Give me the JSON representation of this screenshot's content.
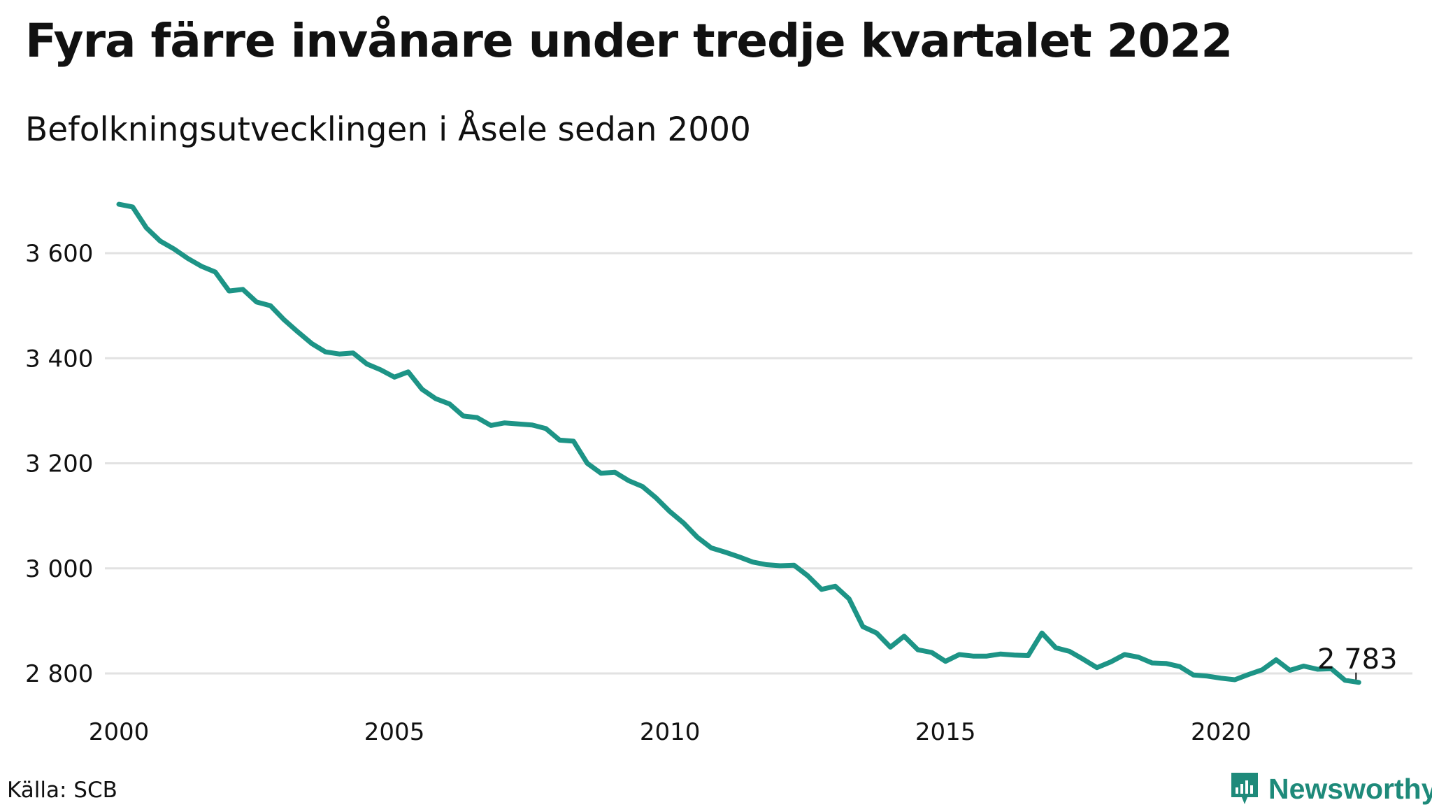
{
  "title": "Fyra färre invånare under tredje kvartalet 2022",
  "subtitle": "Befolkningsutvecklingen i Åsele sedan 2000",
  "source": "Källa: SCB",
  "brand": "Newsworthy",
  "colors": {
    "line": "#1d9486",
    "grid": "#e2e2e2",
    "text": "#111111",
    "brand": "#1e8a7a"
  },
  "icons": {
    "brand_logo": "newsworthy-logo-icon"
  },
  "chart_data": {
    "type": "line",
    "title": "Fyra färre invånare under tredje kvartalet 2022",
    "subtitle": "Befolkningsutvecklingen i Åsele sedan 2000",
    "xlabel": "",
    "ylabel": "",
    "x_ticks": [
      2000,
      2005,
      2010,
      2015,
      2020
    ],
    "x_tick_labels": [
      "2000",
      "2005",
      "2010",
      "2015",
      "2020"
    ],
    "y_ticks": [
      2800,
      3000,
      3200,
      3400,
      3600
    ],
    "y_tick_labels": [
      "2 800",
      "3 000",
      "3 200",
      "3 400",
      "3 600"
    ],
    "xlim": [
      2000,
      2023.5
    ],
    "ylim": [
      2750,
      3720
    ],
    "grid": "horizontal",
    "x": [
      "2000-Q1",
      "2000-Q2",
      "2000-Q3",
      "2000-Q4",
      "2001-Q1",
      "2001-Q2",
      "2001-Q3",
      "2001-Q4",
      "2002-Q1",
      "2002-Q2",
      "2002-Q3",
      "2002-Q4",
      "2003-Q1",
      "2003-Q2",
      "2003-Q3",
      "2003-Q4",
      "2004-Q1",
      "2004-Q2",
      "2004-Q3",
      "2004-Q4",
      "2005-Q1",
      "2005-Q2",
      "2005-Q3",
      "2005-Q4",
      "2006-Q1",
      "2006-Q2",
      "2006-Q3",
      "2006-Q4",
      "2007-Q1",
      "2007-Q2",
      "2007-Q3",
      "2007-Q4",
      "2008-Q1",
      "2008-Q2",
      "2008-Q3",
      "2008-Q4",
      "2009-Q1",
      "2009-Q2",
      "2009-Q3",
      "2009-Q4",
      "2010-Q1",
      "2010-Q2",
      "2010-Q3",
      "2010-Q4",
      "2011-Q1",
      "2011-Q2",
      "2011-Q3",
      "2011-Q4",
      "2012-Q1",
      "2012-Q2",
      "2012-Q3",
      "2012-Q4",
      "2013-Q1",
      "2013-Q2",
      "2013-Q3",
      "2013-Q4",
      "2014-Q1",
      "2014-Q2",
      "2014-Q3",
      "2014-Q4",
      "2015-Q1",
      "2015-Q2",
      "2015-Q3",
      "2015-Q4",
      "2016-Q1",
      "2016-Q2",
      "2016-Q3",
      "2016-Q4",
      "2017-Q1",
      "2017-Q2",
      "2017-Q3",
      "2017-Q4",
      "2018-Q1",
      "2018-Q2",
      "2018-Q3",
      "2018-Q4",
      "2019-Q1",
      "2019-Q2",
      "2019-Q3",
      "2019-Q4",
      "2020-Q1",
      "2020-Q2",
      "2020-Q3",
      "2020-Q4",
      "2021-Q1",
      "2021-Q2",
      "2021-Q3",
      "2021-Q4",
      "2022-Q1",
      "2022-Q2",
      "2022-Q3"
    ],
    "series": [
      {
        "values": [
          3693,
          3688,
          3648,
          3623,
          3608,
          3590,
          3575,
          3564,
          3528,
          3531,
          3507,
          3500,
          3473,
          3450,
          3428,
          3412,
          3408,
          3410,
          3389,
          3378,
          3364,
          3374,
          3341,
          3323,
          3313,
          3290,
          3287,
          3272,
          3277,
          3275,
          3273,
          3266,
          3244,
          3242,
          3200,
          3181,
          3183,
          3167,
          3156,
          3134,
          3108,
          3086,
          3059,
          3039,
          3031,
          3022,
          3012,
          3007,
          3005,
          3006,
          2986,
          2960,
          2966,
          2942,
          2889,
          2877,
          2850,
          2871,
          2845,
          2840,
          2823,
          2836,
          2833,
          2833,
          2837,
          2835,
          2834,
          2877,
          2849,
          2842,
          2827,
          2811,
          2822,
          2836,
          2831,
          2820,
          2819,
          2813,
          2797,
          2795,
          2791,
          2788,
          2798,
          2807,
          2826,
          2806,
          2814,
          2808,
          2809,
          2787,
          2783
        ]
      }
    ],
    "annotations": [
      {
        "x": "2022-Q3",
        "y": 2783,
        "text": "2 783"
      }
    ]
  }
}
